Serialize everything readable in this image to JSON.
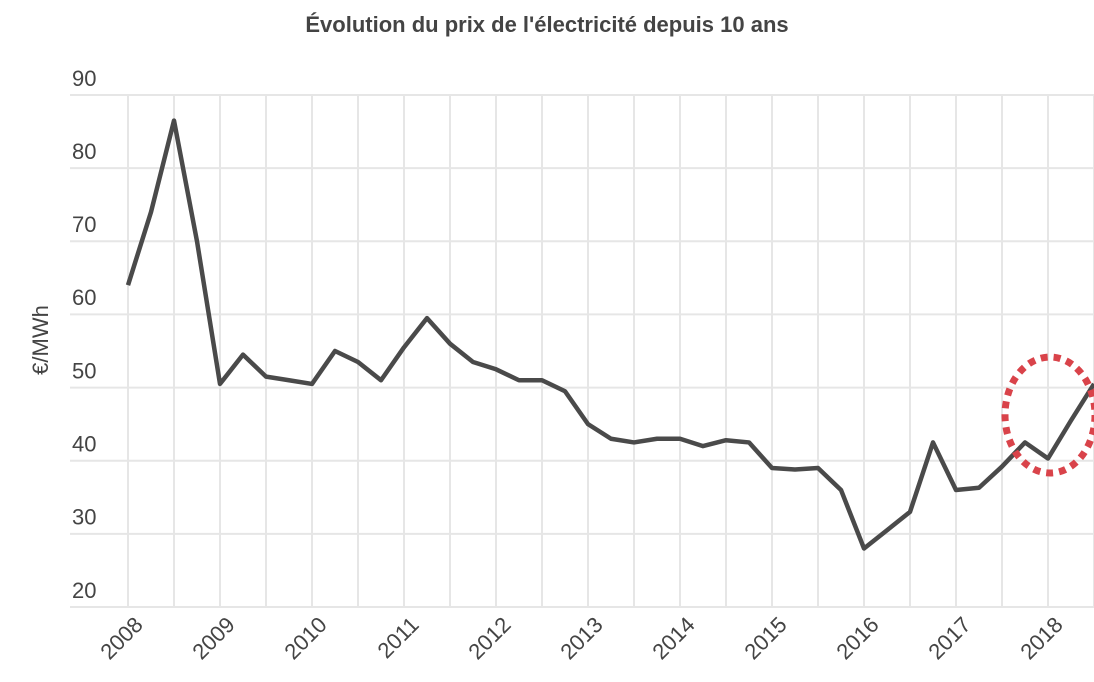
{
  "chart_data": {
    "type": "line",
    "title": "Évolution du prix de l'électricité depuis 10 ans",
    "y_label": "€/MWh",
    "x": [
      2008,
      2008.25,
      2008.5,
      2008.75,
      2009,
      2009.25,
      2009.5,
      2009.75,
      2010,
      2010.25,
      2010.5,
      2010.75,
      2011,
      2011.25,
      2011.5,
      2011.75,
      2012,
      2012.25,
      2012.5,
      2012.75,
      2013,
      2013.25,
      2013.5,
      2013.75,
      2014,
      2014.25,
      2014.5,
      2014.75,
      2015,
      2015.25,
      2015.5,
      2015.75,
      2016,
      2016.25,
      2016.5,
      2016.75,
      2017,
      2017.25,
      2017.5,
      2017.75,
      2018,
      2018.25,
      2018.5
    ],
    "series": [
      {
        "color": "#4a4a4a",
        "values": [
          64,
          74,
          86.5,
          70,
          50.5,
          54.5,
          51.5,
          51,
          50.5,
          55,
          53.5,
          51,
          55.5,
          59.5,
          56,
          53.5,
          52.5,
          51,
          51,
          49.5,
          45,
          43,
          42.5,
          43,
          43,
          42,
          42.8,
          42.5,
          39,
          38.8,
          39,
          36,
          28,
          30.5,
          33,
          42.5,
          36,
          36.3,
          39.2,
          42.5,
          40.3,
          45.5,
          50.5
        ]
      }
    ],
    "xlim": [
      2008,
      2018.5
    ],
    "xticks": [
      2008,
      2009,
      2010,
      2011,
      2012,
      2013,
      2014,
      2015,
      2016,
      2017,
      2018
    ],
    "minor_xticks": [
      2008.5,
      2009.5,
      2010.5,
      2011.5,
      2012.5,
      2013.5,
      2014.5,
      2015.5,
      2016.5,
      2017.5,
      2018.5
    ],
    "ylim": [
      20,
      90
    ],
    "yticks": [
      20,
      30,
      40,
      50,
      60,
      70,
      80,
      90
    ],
    "grid": true
  }
}
